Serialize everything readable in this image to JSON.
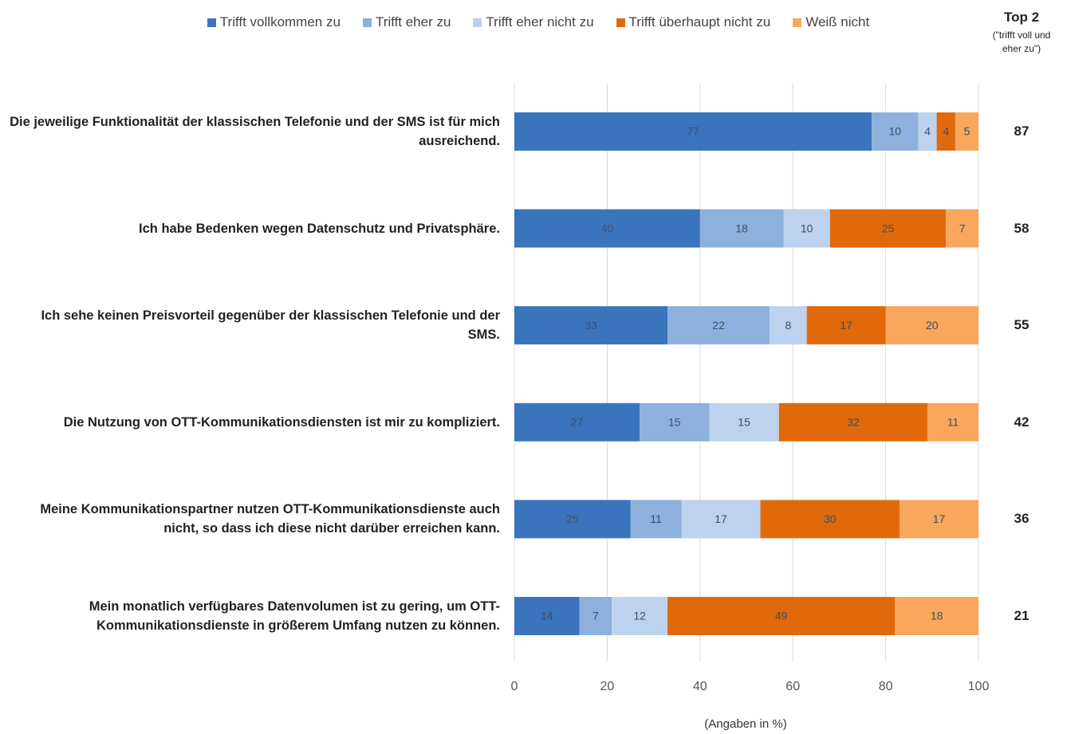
{
  "chart_data": {
    "type": "stacked-bar-horizontal",
    "categories": [
      "Die jeweilige Funktionalität der klassischen Telefonie und der SMS ist für mich ausreichend.",
      "Ich habe Bedenken wegen Datenschutz und Privatsphäre.",
      "Ich sehe keinen Preisvorteil gegenüber der klassischen Telefonie und der SMS.",
      "Die Nutzung von OTT-Kommunikationsdiensten ist mir zu kompliziert.",
      "Meine Kommunikationspartner nutzen OTT-Kommunikationsdienste auch nicht, so dass ich diese nicht darüber erreichen kann.",
      "Mein monatlich verfügbares Datenvolumen ist zu gering, um OTT-Kommunikationsdienste in größerem Umfang nutzen zu können."
    ],
    "series": [
      {
        "name": "Trifft vollkommen zu",
        "color": "#3a74bd",
        "values": [
          77,
          40,
          33,
          27,
          25,
          14
        ]
      },
      {
        "name": "Trifft eher zu",
        "color": "#8eb0dc",
        "values": [
          10,
          18,
          22,
          15,
          11,
          7
        ]
      },
      {
        "name": "Trifft eher nicht zu",
        "color": "#bcd2ee",
        "values": [
          4,
          10,
          8,
          15,
          17,
          12
        ]
      },
      {
        "name": "Trifft überhaupt nicht zu",
        "color": "#e06a0b",
        "values": [
          4,
          25,
          17,
          32,
          30,
          49
        ]
      },
      {
        "name": "Weiß nicht",
        "color": "#f8a75c",
        "values": [
          5,
          7,
          20,
          11,
          17,
          18
        ]
      }
    ],
    "top2_title": "Top 2",
    "top2_note": "(\"trifft voll und eher zu\")",
    "top2_values": [
      87,
      58,
      55,
      42,
      36,
      21
    ],
    "x_label": "(Angaben in %)",
    "xlim": [
      0,
      100
    ],
    "xticks": [
      0,
      20,
      40,
      60,
      80,
      100
    ],
    "grid": true
  }
}
